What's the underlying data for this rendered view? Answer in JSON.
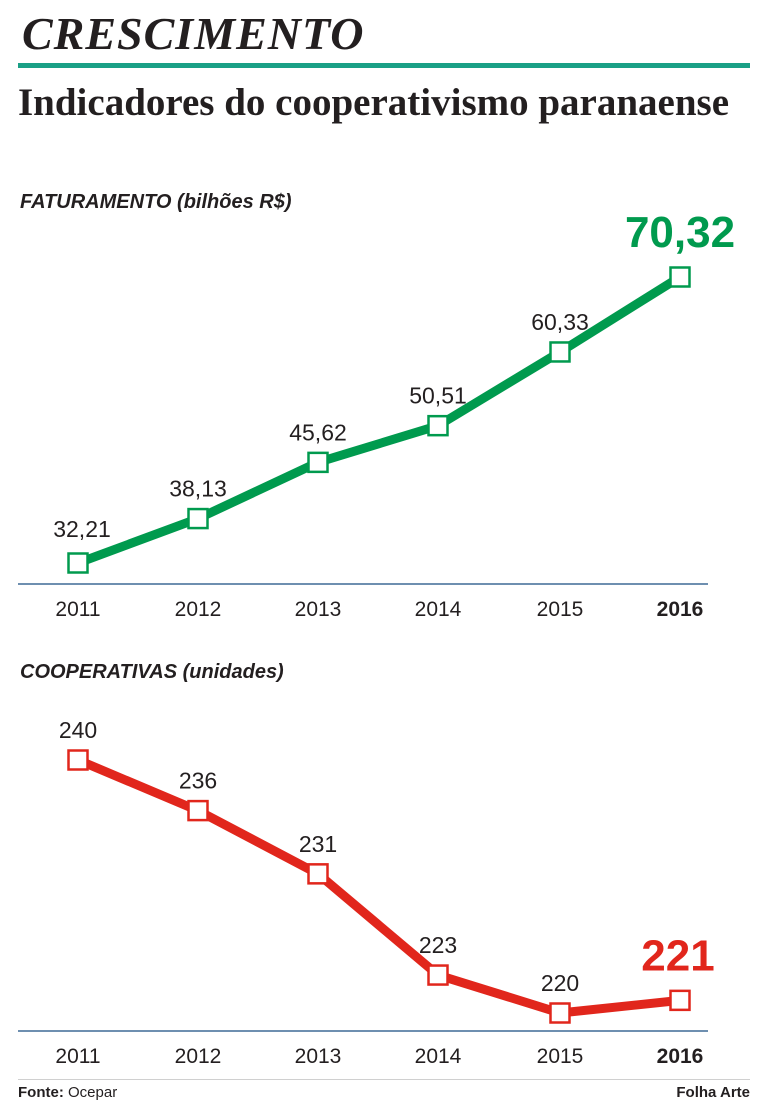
{
  "header": {
    "title": "CRESCIMENTO",
    "subtitle": "Indicadores do cooperativismo paranaense",
    "accent_color": "#1aa086"
  },
  "chart_data": [
    {
      "type": "line",
      "title": "FATURAMENTO (bilhões R$)",
      "categories": [
        "2011",
        "2012",
        "2013",
        "2014",
        "2015",
        "2016"
      ],
      "values": [
        32.21,
        38.13,
        45.62,
        50.51,
        60.33,
        70.32
      ],
      "value_labels": [
        "32,21",
        "38,13",
        "45,62",
        "50,51",
        "60,33",
        "70,32"
      ],
      "highlight": "2016",
      "color": "#009a4e",
      "ylim": [
        32.21,
        70.32
      ],
      "grid": false,
      "axis_color": "#6e8fb0"
    },
    {
      "type": "line",
      "title": "COOPERATIVAS (unidades)",
      "categories": [
        "2011",
        "2012",
        "2013",
        "2014",
        "2015",
        "2016"
      ],
      "values": [
        240,
        236,
        231,
        223,
        220,
        221
      ],
      "value_labels": [
        "240",
        "236",
        "231",
        "223",
        "220",
        "221"
      ],
      "highlight": "2016",
      "color": "#e1261c",
      "ylim": [
        220,
        240
      ],
      "grid": false,
      "axis_color": "#6e8fb0"
    }
  ],
  "footer": {
    "source_label": "Fonte:",
    "source": "Ocepar",
    "credit": "Folha Arte"
  }
}
